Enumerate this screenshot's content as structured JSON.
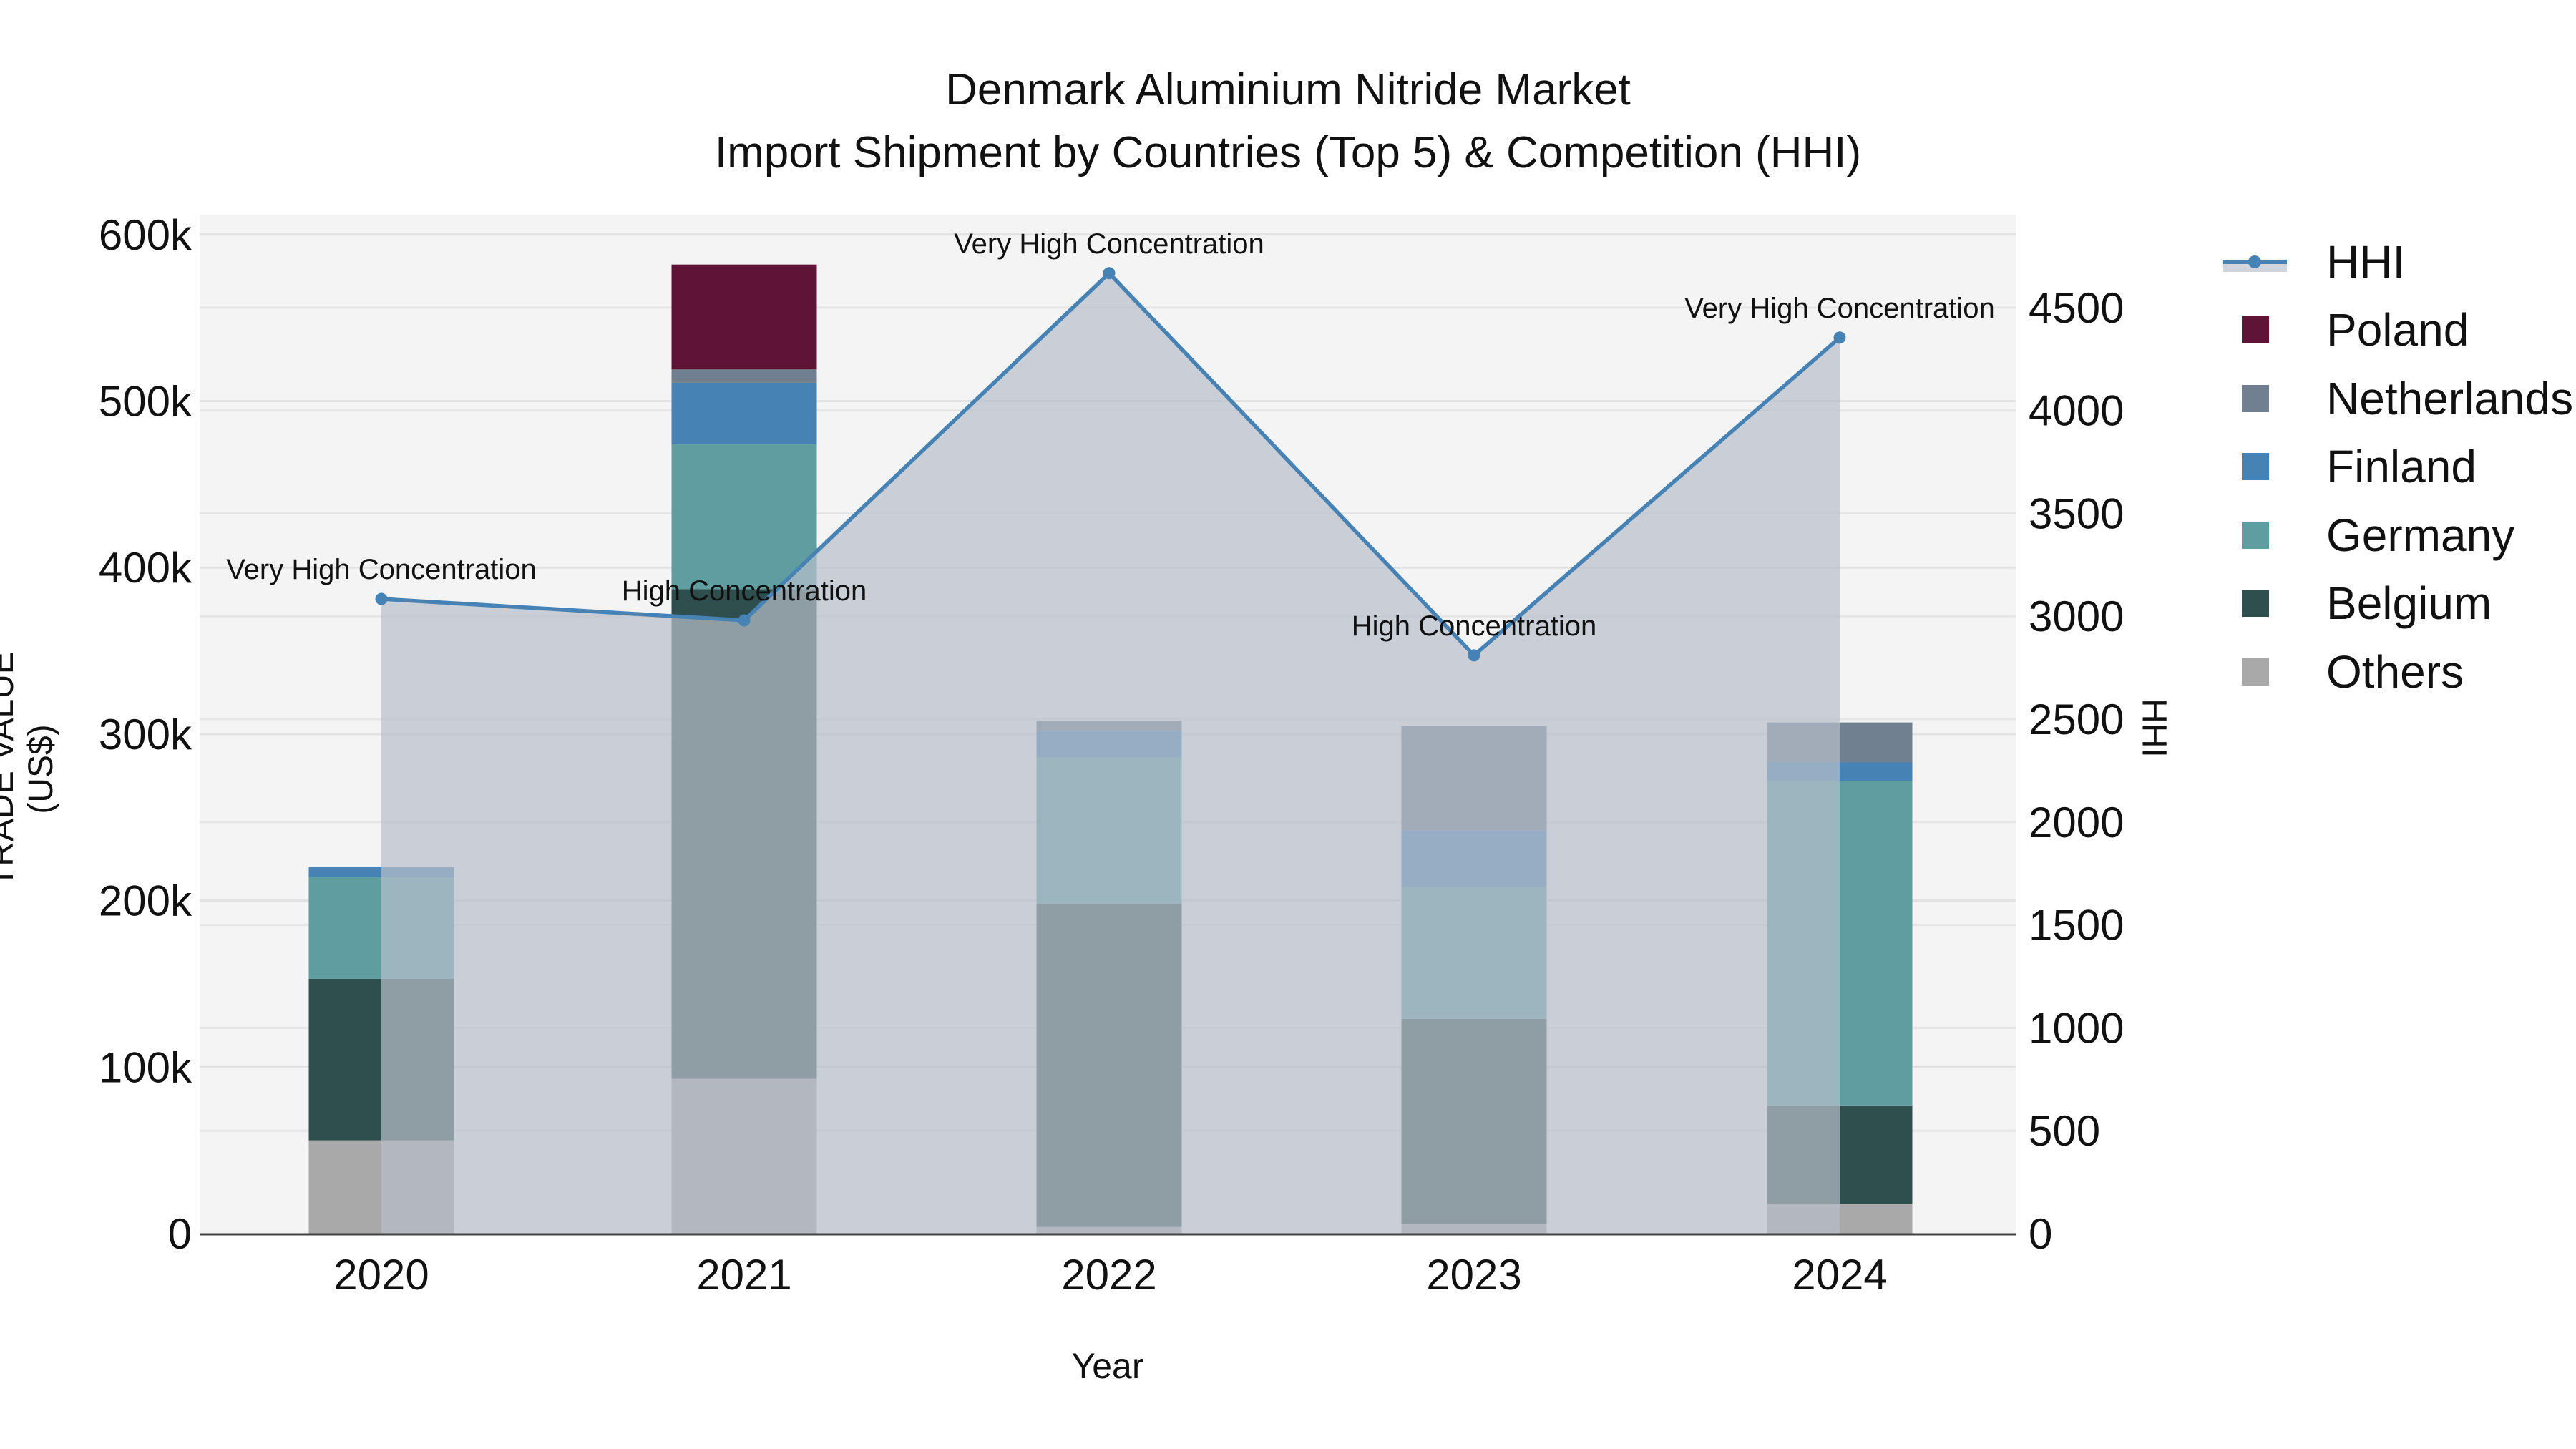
{
  "title": {
    "line1": "Denmark Aluminium Nitride Market",
    "line2": "Import Shipment by Countries (Top 5) & Competition (HHI)"
  },
  "axes": {
    "x_title": "Year",
    "y_left_title": "TRADE VALUE (US$)",
    "y_right_title": "HHI",
    "y_left_ticks": [
      "0",
      "100k",
      "200k",
      "300k",
      "400k",
      "500k",
      "600k"
    ],
    "y_right_ticks": [
      "0",
      "500",
      "1000",
      "1500",
      "2000",
      "2500",
      "3000",
      "3500",
      "4000",
      "4500"
    ]
  },
  "legend": {
    "items": [
      {
        "label": "HHI",
        "type": "line",
        "color": "#4682b4"
      },
      {
        "label": "Poland",
        "type": "bar",
        "color": "#5f1436"
      },
      {
        "label": "Netherlands",
        "type": "bar",
        "color": "#708090"
      },
      {
        "label": "Finland",
        "type": "bar",
        "color": "#4682b4"
      },
      {
        "label": "Germany",
        "type": "bar",
        "color": "#5f9ea0"
      },
      {
        "label": "Belgium",
        "type": "bar",
        "color": "#2f4f4f"
      },
      {
        "label": "Others",
        "type": "bar",
        "color": "#a9a9a9"
      }
    ]
  },
  "chart_data": {
    "type": "bar",
    "stacked": true,
    "title": "Denmark Aluminium Nitride Market\nImport Shipment by Countries (Top 5) & Competition (HHI)",
    "xlabel": "Year",
    "ylabel": "TRADE VALUE (US$)",
    "y2label": "HHI",
    "ylim": [
      0,
      610000
    ],
    "y2lim": [
      0,
      4950
    ],
    "grid": true,
    "legend_position": "right",
    "categories": [
      "2020",
      "2021",
      "2022",
      "2023",
      "2024"
    ],
    "series": [
      {
        "name": "Others",
        "color": "#a9a9a9",
        "values": [
          56000,
          93000,
          4000,
          6000,
          18000
        ]
      },
      {
        "name": "Belgium",
        "color": "#2f4f4f",
        "values": [
          97000,
          294000,
          194000,
          123000,
          59000
        ]
      },
      {
        "name": "Germany",
        "color": "#5f9ea0",
        "values": [
          61000,
          87000,
          88000,
          79000,
          195000
        ]
      },
      {
        "name": "Finland",
        "color": "#4682b4",
        "values": [
          6000,
          37000,
          16000,
          34000,
          11000
        ]
      },
      {
        "name": "Netherlands",
        "color": "#708090",
        "values": [
          0,
          8000,
          6000,
          63000,
          24000
        ]
      },
      {
        "name": "Poland",
        "color": "#5f1436",
        "values": [
          0,
          63000,
          0,
          0,
          0
        ]
      }
    ],
    "line_series": {
      "name": "HHI",
      "axis": "right",
      "type": "line+area",
      "color": "#4682b4",
      "fill_color": "#b8bfca",
      "values": [
        3084,
        2980,
        4667,
        2810,
        4354
      ],
      "annotations": [
        "Very High Concentration",
        "High Concentration",
        "Very High Concentration",
        "High Concentration",
        "Very High Concentration"
      ]
    }
  }
}
